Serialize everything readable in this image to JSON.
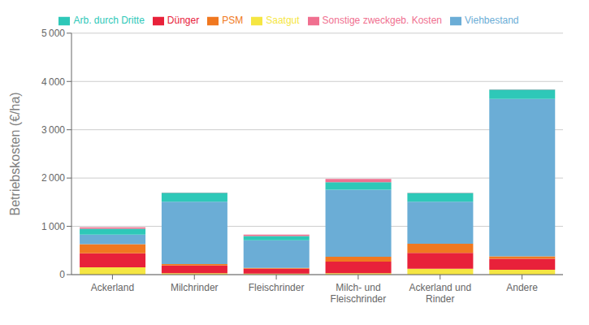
{
  "chart_data": {
    "type": "bar",
    "stacked": true,
    "categories": [
      "Ackerland",
      "Milchrinder",
      "Fleischrinder",
      "Milch- und\nFleischrinder",
      "Ackerland und\nRinder",
      "Andere"
    ],
    "series": [
      {
        "name": "Saatgut",
        "color": "#f5e642",
        "values": [
          150,
          30,
          20,
          30,
          120,
          100
        ]
      },
      {
        "name": "Dünger",
        "color": "#e8213a",
        "values": [
          290,
          160,
          100,
          240,
          330,
          230
        ]
      },
      {
        "name": "PSM",
        "color": "#f07820",
        "values": [
          190,
          30,
          20,
          100,
          190,
          50
        ]
      },
      {
        "name": "Viehbestand",
        "color": "#6badd6",
        "values": [
          200,
          1290,
          570,
          1390,
          870,
          3260
        ]
      },
      {
        "name": "Arb. durch Dritte",
        "color": "#2ec8b8",
        "values": [
          120,
          185,
          90,
          155,
          180,
          190
        ]
      },
      {
        "name": "Sonstige zweckgeb. Kosten",
        "color": "#f07090",
        "values": [
          30,
          5,
          30,
          65,
          5,
          5
        ]
      }
    ],
    "ylabel": "Betriebskosten (€/ha)",
    "ylim": [
      0,
      5000
    ],
    "yticks": [
      0,
      {
        "value": 1000,
        "label": "1 000"
      },
      {
        "value": 2000,
        "label": "2 000"
      },
      {
        "value": 3000,
        "label": "3 000"
      },
      {
        "value": 4000,
        "label": "4 000"
      },
      {
        "value": 5000,
        "label": "5 000"
      }
    ],
    "grid": true,
    "legend": "top"
  }
}
